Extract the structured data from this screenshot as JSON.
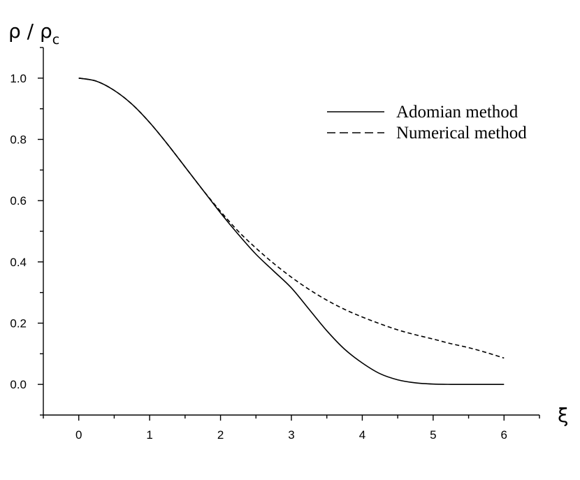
{
  "chart_data": {
    "type": "line",
    "ylabel": "ρ / ρ",
    "ylabel_sub": "c",
    "xlabel": "ξ",
    "xlim": [
      -0.5,
      6.5
    ],
    "ylim": [
      -0.1,
      1.1
    ],
    "x_ticks": [
      0,
      1,
      2,
      3,
      4,
      5,
      6
    ],
    "x_tick_labels": [
      "0",
      "1",
      "2",
      "3",
      "4",
      "5",
      "6"
    ],
    "y_ticks": [
      0.0,
      0.2,
      0.4,
      0.6,
      0.8,
      1.0
    ],
    "y_tick_labels": [
      "0.0",
      "0.2",
      "0.4",
      "0.6",
      "0.8",
      "1.0"
    ],
    "grid": false,
    "legend_position": "top-right",
    "series": [
      {
        "name": "Adomian method",
        "style": "solid",
        "x": [
          0,
          0.25,
          0.5,
          0.75,
          1.0,
          1.25,
          1.5,
          1.75,
          2.0,
          2.25,
          2.5,
          2.75,
          3.0,
          3.25,
          3.5,
          3.75,
          4.0,
          4.25,
          4.5,
          4.75,
          5.0,
          5.25,
          5.5,
          5.75,
          6.0
        ],
        "y": [
          1.0,
          0.99,
          0.96,
          0.915,
          0.855,
          0.785,
          0.71,
          0.635,
          0.56,
          0.49,
          0.425,
          0.37,
          0.315,
          0.245,
          0.175,
          0.115,
          0.07,
          0.035,
          0.015,
          0.005,
          0.001,
          0.0,
          0.0,
          0.0,
          0.0
        ]
      },
      {
        "name": "Numerical method",
        "style": "dashed",
        "x": [
          0,
          0.25,
          0.5,
          0.75,
          1.0,
          1.25,
          1.5,
          1.75,
          2.0,
          2.25,
          2.5,
          2.75,
          3.0,
          3.25,
          3.5,
          3.75,
          4.0,
          4.25,
          4.5,
          4.75,
          5.0,
          5.25,
          5.5,
          5.75,
          6.0
        ],
        "y": [
          1.0,
          0.99,
          0.96,
          0.915,
          0.855,
          0.785,
          0.71,
          0.635,
          0.565,
          0.5,
          0.445,
          0.395,
          0.35,
          0.31,
          0.275,
          0.245,
          0.22,
          0.198,
          0.178,
          0.162,
          0.148,
          0.133,
          0.12,
          0.104,
          0.086
        ]
      }
    ]
  }
}
